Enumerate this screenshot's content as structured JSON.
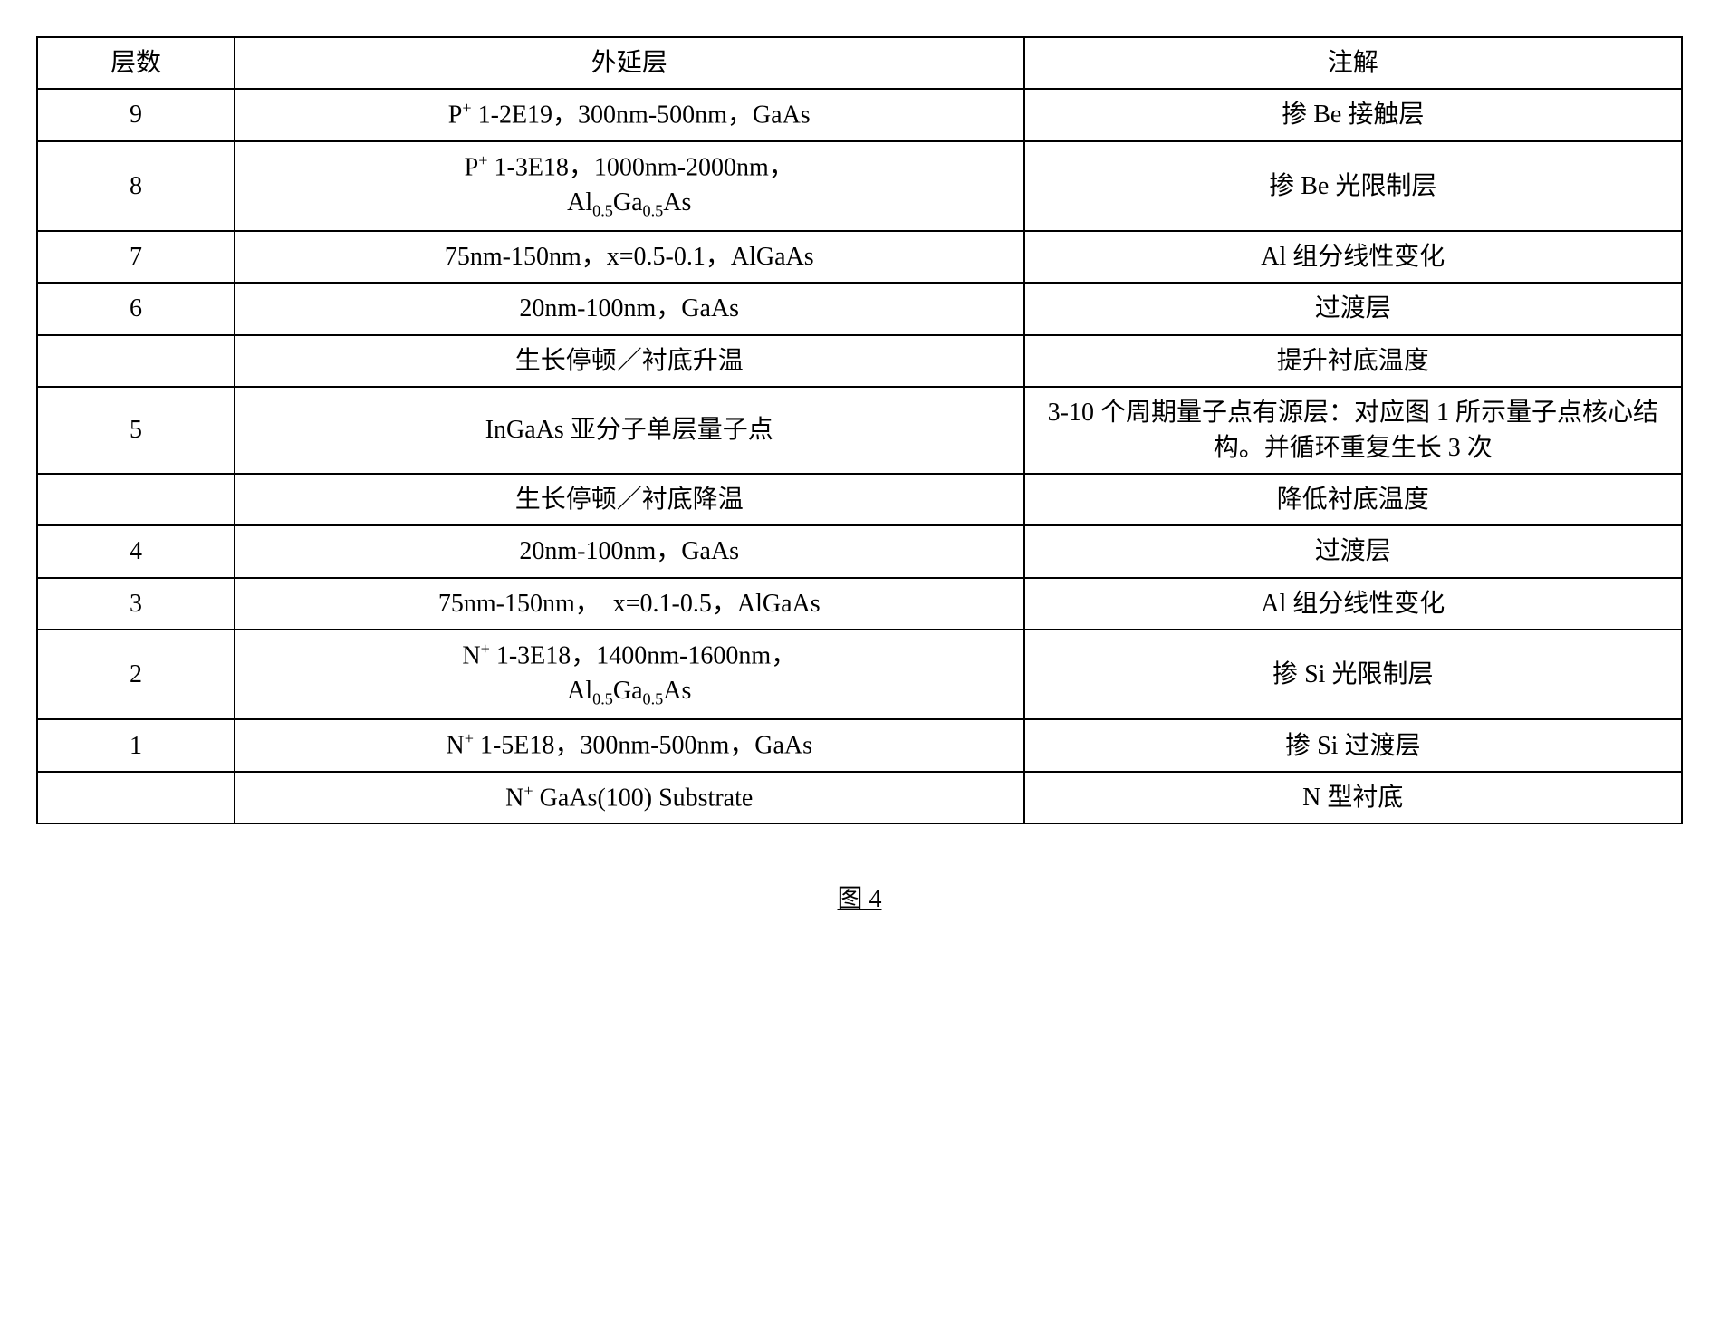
{
  "table": {
    "headers": {
      "layer": "层数",
      "epitaxial": "外延层",
      "notes": "注解"
    },
    "rows": [
      {
        "layer": "9",
        "epitaxial_html": "P<span class='sup'>+</span> 1-2E19，300nm-500nm，GaAs",
        "notes": "掺 Be 接触层"
      },
      {
        "layer": "8",
        "epitaxial_html": "P<span class='sup'>+</span> 1-3E18，1000nm-2000nm，<br>Al<span class='sub'>0.5</span>Ga<span class='sub'>0.5</span>As",
        "notes": "掺 Be 光限制层"
      },
      {
        "layer": "7",
        "epitaxial_html": "75nm-150nm，x=0.5-0.1，AlGaAs",
        "notes": "Al 组分线性变化"
      },
      {
        "layer": "6",
        "epitaxial_html": "20nm-100nm，GaAs",
        "notes": "过渡层"
      },
      {
        "layer": "",
        "epitaxial_html": "生长停顿／衬底升温",
        "notes": "提升衬底温度"
      },
      {
        "layer": "5",
        "epitaxial_html": "InGaAs 亚分子单层量子点",
        "notes": "3-10 个周期量子点有源层：对应图 1 所示量子点核心结构。并循环重复生长 3 次"
      },
      {
        "layer": "",
        "epitaxial_html": "生长停顿／衬底降温",
        "notes": "降低衬底温度"
      },
      {
        "layer": "4",
        "epitaxial_html": "20nm-100nm，GaAs",
        "notes": "过渡层"
      },
      {
        "layer": "3",
        "epitaxial_html": "75nm-150nm，&nbsp;&nbsp;x=0.1-0.5，AlGaAs",
        "notes": "Al 组分线性变化"
      },
      {
        "layer": "2",
        "epitaxial_html": "N<span class='sup'>+</span> 1-3E18，1400nm-1600nm，<br>Al<span class='sub'>0.5</span>Ga<span class='sub'>0.5</span>As",
        "notes": "掺 Si 光限制层"
      },
      {
        "layer": "1",
        "epitaxial_html": "N<span class='sup'>+</span> 1-5E18，300nm-500nm，GaAs",
        "notes": "掺 Si 过渡层"
      },
      {
        "layer": "",
        "epitaxial_html": "N<span class='sup'>+</span> GaAs(100) Substrate",
        "notes": "N 型衬底"
      }
    ]
  },
  "caption": "图 4",
  "styling": {
    "background_color": "#ffffff",
    "border_color": "#000000",
    "border_width": 2,
    "font_size": 28,
    "font_family": "SimSun",
    "col_widths": {
      "layer": "12%",
      "epitaxial": "48%",
      "notes": "40%"
    }
  }
}
